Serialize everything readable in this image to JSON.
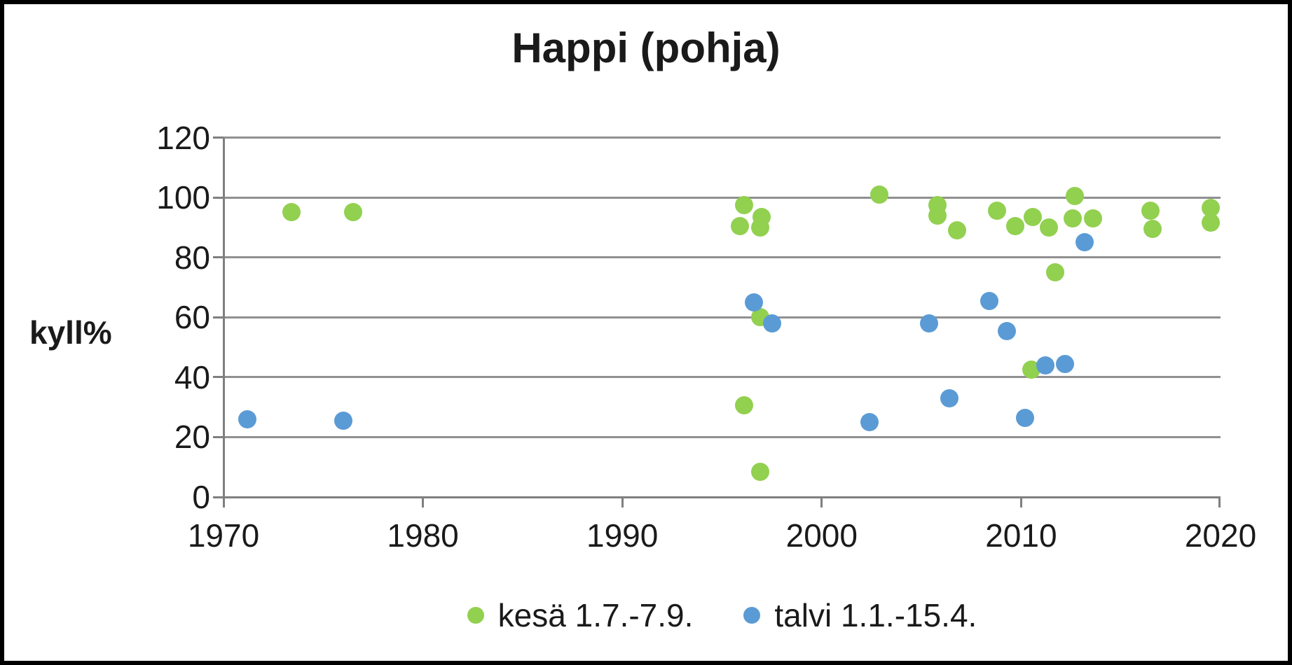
{
  "chart_data": {
    "type": "scatter",
    "title": "Happi (pohja)",
    "ylabel": "kyll%",
    "xlabel": "",
    "xlim": [
      1970,
      2020
    ],
    "ylim": [
      0,
      120
    ],
    "xticks": [
      1970,
      1980,
      1990,
      2000,
      2010,
      2020
    ],
    "yticks": [
      0,
      20,
      40,
      60,
      80,
      100,
      120
    ],
    "grid": "horizontal-only",
    "legend_position": "bottom-center",
    "series": [
      {
        "name": "kesä 1.7.-7.9.",
        "color": "#92D050",
        "points": [
          [
            1973.4,
            95
          ],
          [
            1976.5,
            95
          ],
          [
            1995.9,
            90.5
          ],
          [
            1996.1,
            97.5
          ],
          [
            1996.1,
            30.5
          ],
          [
            1996.9,
            90
          ],
          [
            1996.9,
            60
          ],
          [
            1996.9,
            8.5
          ],
          [
            1997.0,
            93.5
          ],
          [
            2002.9,
            101
          ],
          [
            2005.8,
            97.5
          ],
          [
            2005.8,
            94
          ],
          [
            2006.8,
            89
          ],
          [
            2008.8,
            95.5
          ],
          [
            2009.7,
            90.5
          ],
          [
            2010.5,
            42.5
          ],
          [
            2010.6,
            93.5
          ],
          [
            2011.4,
            90
          ],
          [
            2011.7,
            75
          ],
          [
            2012.6,
            93
          ],
          [
            2012.7,
            100.5
          ],
          [
            2013.6,
            93
          ],
          [
            2016.5,
            95.5
          ],
          [
            2016.6,
            89.5
          ],
          [
            2019.5,
            96.5
          ],
          [
            2019.5,
            91.5
          ]
        ]
      },
      {
        "name": "talvi 1.1.-15.4.",
        "color": "#5B9BD5",
        "points": [
          [
            1971.2,
            26
          ],
          [
            1976.0,
            25.5
          ],
          [
            1996.6,
            65
          ],
          [
            1997.5,
            58
          ],
          [
            2002.4,
            25
          ],
          [
            2005.4,
            58
          ],
          [
            2006.4,
            33
          ],
          [
            2008.4,
            65.5
          ],
          [
            2009.3,
            55.5
          ],
          [
            2010.2,
            26.5
          ],
          [
            2011.2,
            44
          ],
          [
            2012.2,
            44.5
          ],
          [
            2013.2,
            85
          ]
        ]
      }
    ]
  }
}
